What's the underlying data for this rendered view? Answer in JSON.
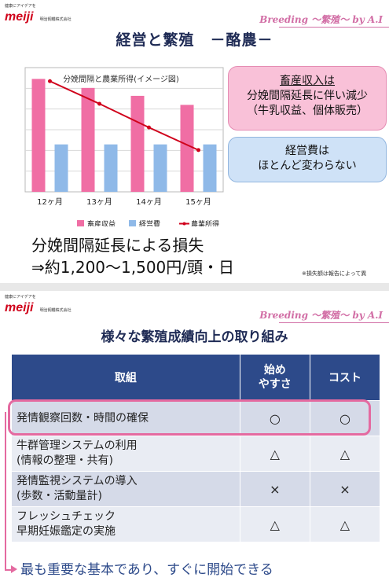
{
  "slide1": {
    "logo": {
      "tagline": "健康にアイデアを",
      "mark": "meiji",
      "company": "明治飼糧株式会社"
    },
    "brand": "Breeding ～繁殖～ by A.I",
    "title": "経営と繁殖　－酪農－",
    "callout_revenue": {
      "heading": "畜産収入は",
      "line2": "分娩間隔延長に伴い減少",
      "line3": "（牛乳収益、個体販売）"
    },
    "callout_cost": {
      "line1": "経営費は",
      "line2": "ほとんど変わらない"
    },
    "loss_line1": "分娩間隔延長による損失",
    "loss_line2": "⇒約1,200～1,500円/頭・日",
    "note": "※損失額は報告によって異"
  },
  "chart_data": {
    "type": "bar",
    "title": "分娩間隔と農業所得(イメージ図)",
    "categories": [
      "12ヶ月",
      "13ヶ月",
      "14ヶ月",
      "15ヶ月"
    ],
    "series": [
      {
        "name": "畜産収益",
        "kind": "bar",
        "color": "#f06ea4",
        "values": [
          100,
          92,
          85,
          77
        ]
      },
      {
        "name": "経営費",
        "kind": "bar",
        "color": "#8fb9e8",
        "values": [
          42,
          42,
          42,
          42
        ]
      },
      {
        "name": "農業所得",
        "kind": "line",
        "color": "#d0021b",
        "values": [
          98,
          78,
          57,
          37
        ]
      }
    ],
    "ylim": [
      0,
      110
    ],
    "grid": true,
    "legend": "bottom"
  },
  "slide2": {
    "logo": {
      "tagline": "健康にアイデアを",
      "mark": "meiji",
      "company": "明治飼糧株式会社"
    },
    "brand": "Breeding ～繁殖～ by A.I",
    "title": "様々な繁殖成績向上の取り組み",
    "table": {
      "headers": [
        "取組",
        "始め\nやすさ",
        "コスト"
      ],
      "rows": [
        [
          "発情観察回数・時間の確保",
          "○",
          "○"
        ],
        [
          "牛群管理システムの利用\n(情報の整理・共有)",
          "△",
          "△"
        ],
        [
          "発情監視システムの導入\n(歩数・活動量計)",
          "×",
          "×"
        ],
        [
          "フレッシュチェック\n早期妊娠鑑定の実施",
          "△",
          "△"
        ]
      ]
    },
    "bottom_message": "最も重要な基本であり、すぐに開始できる"
  }
}
